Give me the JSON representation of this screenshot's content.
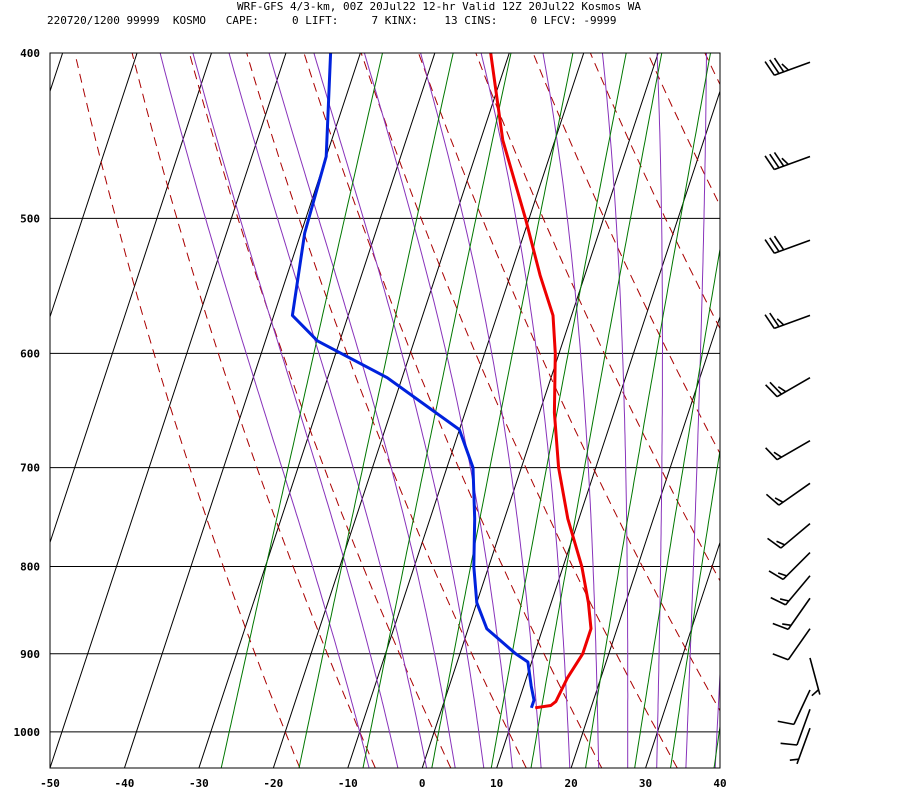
{
  "header": {
    "title": "WRF-GFS 4/3-km, 00Z 20Jul22 12-hr Valid 12Z 20Jul22 Kosmos WA",
    "stats": "220720/1200 99999  KOSMO   CAPE:     0 LIFT:     7 KINX:    13 CINS:     0 LFCV: -9999"
  },
  "colors": {
    "temperature": "#ee0000",
    "dewpoint": "#0022dd",
    "isotherm": "#000000",
    "isobar": "#000000",
    "dry_adiabat": "#aa0000",
    "moist_adiabat": "#8833bb",
    "mixing_ratio": "#007700",
    "wind_barb": "#000000"
  },
  "chart_data": {
    "type": "line",
    "title": "",
    "xlabel": "",
    "ylabel": "",
    "xlim": [
      -50,
      40
    ],
    "ylim": [
      1050,
      400
    ],
    "y_scale": "log",
    "x_ticks": [
      -50,
      -40,
      -30,
      -20,
      -10,
      0,
      10,
      20,
      30,
      40
    ],
    "y_ticks": [
      400,
      500,
      600,
      700,
      800,
      900,
      1000
    ],
    "grid": true,
    "series": [
      {
        "name": "",
        "role": "temperature",
        "points": [
          {
            "p": 400,
            "t": -22.5
          },
          {
            "p": 450,
            "t": -17
          },
          {
            "p": 500,
            "t": -10.5
          },
          {
            "p": 540,
            "t": -6
          },
          {
            "p": 570,
            "t": -2.5
          },
          {
            "p": 600,
            "t": -0.5
          },
          {
            "p": 650,
            "t": 2
          },
          {
            "p": 700,
            "t": 5
          },
          {
            "p": 750,
            "t": 8.5
          },
          {
            "p": 800,
            "t": 12.5
          },
          {
            "p": 840,
            "t": 15
          },
          {
            "p": 870,
            "t": 16.5
          },
          {
            "p": 900,
            "t": 16.5
          },
          {
            "p": 930,
            "t": 15.5
          },
          {
            "p": 960,
            "t": 15
          },
          {
            "p": 965,
            "t": 14.5
          },
          {
            "p": 968,
            "t": 12.5
          }
        ]
      },
      {
        "name": "",
        "role": "dewpoint",
        "points": [
          {
            "p": 400,
            "t": -44
          },
          {
            "p": 460,
            "t": -40
          },
          {
            "p": 510,
            "t": -39.5
          },
          {
            "p": 570,
            "t": -37.5
          },
          {
            "p": 590,
            "t": -33
          },
          {
            "p": 620,
            "t": -22
          },
          {
            "p": 665,
            "t": -10
          },
          {
            "p": 700,
            "t": -6.5
          },
          {
            "p": 750,
            "t": -4
          },
          {
            "p": 800,
            "t": -2
          },
          {
            "p": 840,
            "t": 0
          },
          {
            "p": 870,
            "t": 2.5
          },
          {
            "p": 900,
            "t": 7.5
          },
          {
            "p": 910,
            "t": 9.5
          },
          {
            "p": 940,
            "t": 11
          },
          {
            "p": 958,
            "t": 12
          },
          {
            "p": 968,
            "t": 12
          }
        ]
      }
    ],
    "wind_barbs": [
      {
        "p": 405,
        "dir": 250,
        "kts": 35
      },
      {
        "p": 460,
        "dir": 250,
        "kts": 35
      },
      {
        "p": 515,
        "dir": 250,
        "kts": 30
      },
      {
        "p": 570,
        "dir": 250,
        "kts": 25
      },
      {
        "p": 620,
        "dir": 240,
        "kts": 25
      },
      {
        "p": 675,
        "dir": 240,
        "kts": 15
      },
      {
        "p": 715,
        "dir": 235,
        "kts": 15
      },
      {
        "p": 755,
        "dir": 230,
        "kts": 15
      },
      {
        "p": 785,
        "dir": 225,
        "kts": 15
      },
      {
        "p": 810,
        "dir": 220,
        "kts": 15
      },
      {
        "p": 835,
        "dir": 215,
        "kts": 15
      },
      {
        "p": 870,
        "dir": 215,
        "kts": 10
      },
      {
        "p": 905,
        "dir": 165,
        "kts": 5
      },
      {
        "p": 945,
        "dir": 205,
        "kts": 10
      },
      {
        "p": 970,
        "dir": 200,
        "kts": 10
      },
      {
        "p": 995,
        "dir": 200,
        "kts": 5
      }
    ]
  }
}
